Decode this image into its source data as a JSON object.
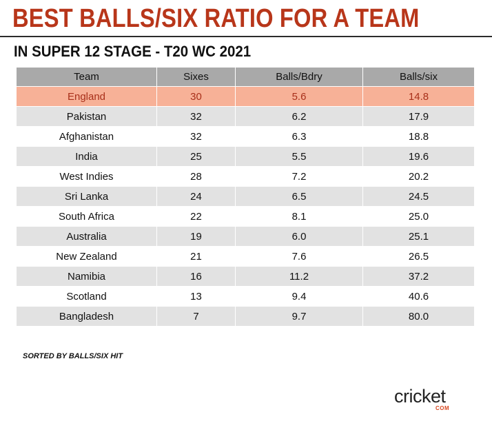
{
  "title": "BEST BALLS/SIX RATIO FOR A TEAM",
  "subtitle": "IN SUPER 12 STAGE - T20 WC 2021",
  "note": "SORTED BY BALLS/SIX HIT",
  "logo": {
    "text": "cricket",
    "sub": "COM"
  },
  "colors": {
    "title": "#b8361a",
    "header_bg": "#a9a9a9",
    "highlight_bg": "#f7b197",
    "highlight_text": "#a8301a",
    "row_alt": "#e2e2e2"
  },
  "chart_data": {
    "type": "table",
    "columns": [
      "Team",
      "Sixes",
      "Balls/Bdry",
      "Balls/six"
    ],
    "highlighted_row": "England",
    "rows": [
      {
        "team": "England",
        "sixes": "30",
        "balls_bdry": "5.6",
        "balls_six": "14.8"
      },
      {
        "team": "Pakistan",
        "sixes": "32",
        "balls_bdry": "6.2",
        "balls_six": "17.9"
      },
      {
        "team": "Afghanistan",
        "sixes": "32",
        "balls_bdry": "6.3",
        "balls_six": "18.8"
      },
      {
        "team": "India",
        "sixes": "25",
        "balls_bdry": "5.5",
        "balls_six": "19.6"
      },
      {
        "team": "West Indies",
        "sixes": "28",
        "balls_bdry": "7.2",
        "balls_six": "20.2"
      },
      {
        "team": "Sri Lanka",
        "sixes": "24",
        "balls_bdry": "6.5",
        "balls_six": "24.5"
      },
      {
        "team": "South Africa",
        "sixes": "22",
        "balls_bdry": "8.1",
        "balls_six": "25.0"
      },
      {
        "team": "Australia",
        "sixes": "19",
        "balls_bdry": "6.0",
        "balls_six": "25.1"
      },
      {
        "team": "New Zealand",
        "sixes": "21",
        "balls_bdry": "7.6",
        "balls_six": "26.5"
      },
      {
        "team": "Namibia",
        "sixes": "16",
        "balls_bdry": "11.2",
        "balls_six": "37.2"
      },
      {
        "team": "Scotland",
        "sixes": "13",
        "balls_bdry": "9.4",
        "balls_six": "40.6"
      },
      {
        "team": "Bangladesh",
        "sixes": "7",
        "balls_bdry": "9.7",
        "balls_six": "80.0"
      }
    ]
  }
}
